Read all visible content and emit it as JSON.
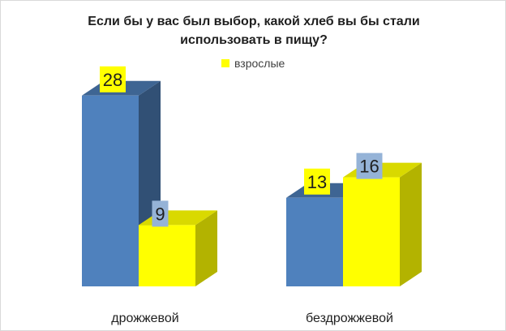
{
  "chart_data": {
    "type": "bar",
    "title": "Если бы у вас был выбор, какой хлеб вы бы  стали\nиспользовать в пищу?",
    "categories": [
      "дрожжевой",
      "бездрожжевой"
    ],
    "series": [
      {
        "values": [
          28,
          13
        ],
        "color": "#4f81bd",
        "label_bg": "#ffff00"
      },
      {
        "name": "взрослые",
        "values": [
          9,
          16
        ],
        "color": "#ffff00",
        "label_bg": "#95b3d7"
      }
    ],
    "three_d": true,
    "legend_position": "top",
    "grid": false
  }
}
